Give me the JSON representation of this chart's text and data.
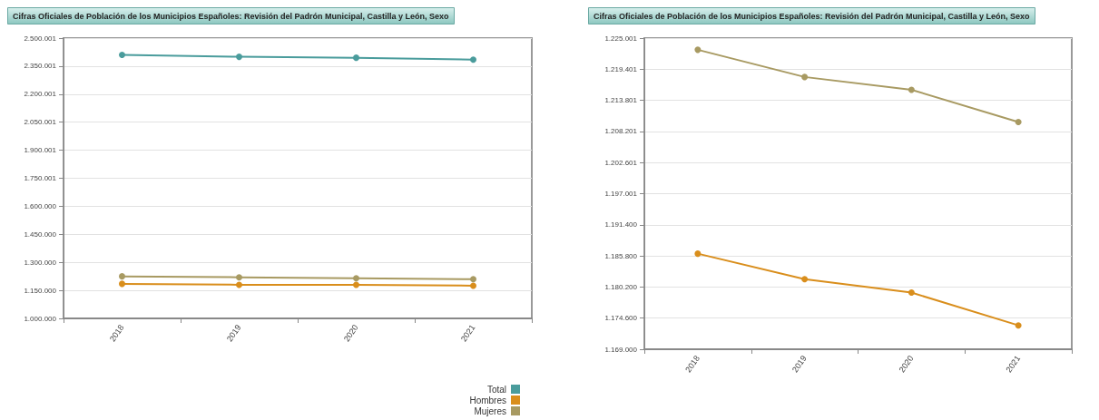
{
  "chart_data": [
    {
      "type": "line",
      "title": "Cifras Oficiales de Población de los Municipios Españoles: Revisión del Padrón Municipal, Castilla y León, Sexo",
      "categories": [
        "2018",
        "2019",
        "2020",
        "2021"
      ],
      "series": [
        {
          "name": "Total",
          "color": "#4a9c9c",
          "values": [
            2410000,
            2400000,
            2395000,
            2385000
          ]
        },
        {
          "name": "Hombres",
          "color": "#d98e1c",
          "values": [
            1185000,
            1180000,
            1180000,
            1175000
          ]
        },
        {
          "name": "Mujeres",
          "color": "#a89a62",
          "values": [
            1225000,
            1220000,
            1215000,
            1210000
          ]
        }
      ],
      "ylim": [
        1000000,
        2500001
      ],
      "yticks": [
        {
          "value": 1000000,
          "label": "1.000.000"
        },
        {
          "value": 1150000,
          "label": "1.150.000"
        },
        {
          "value": 1300000,
          "label": "1.300.000"
        },
        {
          "value": 1450000,
          "label": "1.450.000"
        },
        {
          "value": 1600000,
          "label": "1.600.000"
        },
        {
          "value": 1750001,
          "label": "1.750.001"
        },
        {
          "value": 1900001,
          "label": "1.900.001"
        },
        {
          "value": 2050001,
          "label": "2.050.001"
        },
        {
          "value": 2200001,
          "label": "2.200.001"
        },
        {
          "value": 2350001,
          "label": "2.350.001"
        },
        {
          "value": 2500001,
          "label": "2.500.001"
        }
      ],
      "grid": "y",
      "legend": "bottom right",
      "marker": "circle",
      "line_style": "solid"
    },
    {
      "type": "line",
      "title": "Cifras Oficiales de Población de los Municipios Españoles: Revisión del Padrón Municipal, Castilla y León, Sexo",
      "categories": [
        "2018",
        "2019",
        "2020",
        "2021"
      ],
      "series": [
        {
          "color": "#d98e1c",
          "values": [
            1186200,
            1181600,
            1179200,
            1173300
          ]
        },
        {
          "color": "#a89a62",
          "values": [
            1222900,
            1218000,
            1215700,
            1209900
          ]
        }
      ],
      "ylim": [
        1169000,
        1225001
      ],
      "yticks": [
        {
          "value": 1169000,
          "label": "1.169.000"
        },
        {
          "value": 1174600,
          "label": "1.174.600"
        },
        {
          "value": 1180200,
          "label": "1.180.200"
        },
        {
          "value": 1185800,
          "label": "1.185.800"
        },
        {
          "value": 1191400,
          "label": "1.191.400"
        },
        {
          "value": 1197001,
          "label": "1.197.001"
        },
        {
          "value": 1202601,
          "label": "1.202.601"
        },
        {
          "value": 1208201,
          "label": "1.208.201"
        },
        {
          "value": 1213801,
          "label": "1.213.801"
        },
        {
          "value": 1219401,
          "label": "1.219.401"
        },
        {
          "value": 1225001,
          "label": "1.225.001"
        }
      ],
      "grid": "y",
      "marker": "circle",
      "line_style": "solid"
    }
  ]
}
